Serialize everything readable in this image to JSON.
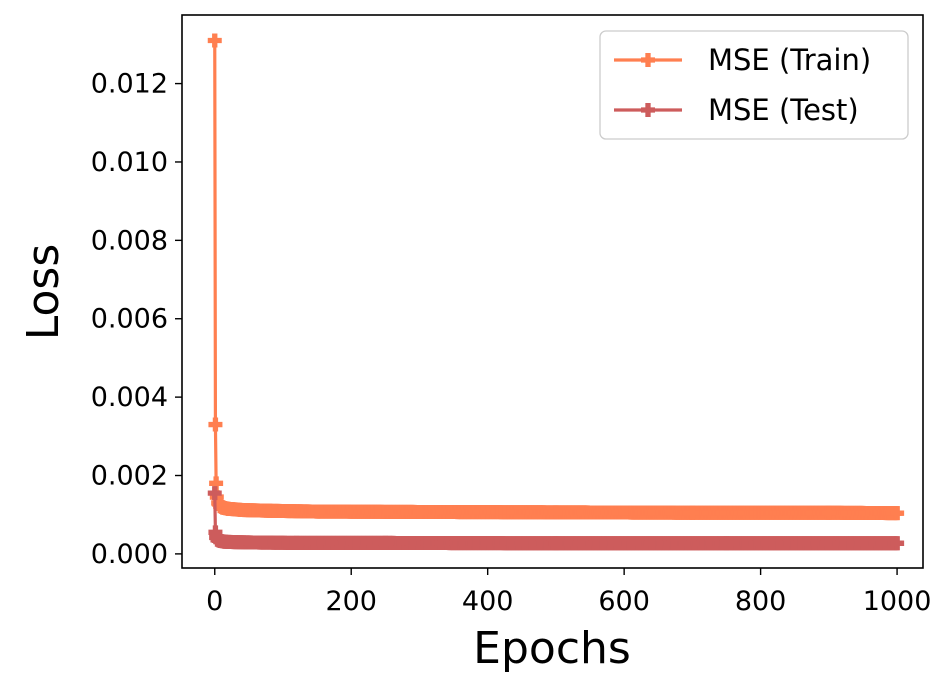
{
  "chart_data": {
    "type": "line",
    "title": "",
    "xlabel": "Epochs",
    "ylabel": "Loss",
    "xlim": [
      -48,
      1038
    ],
    "ylim": [
      -0.00036,
      0.01375
    ],
    "xticks": [
      0,
      200,
      400,
      600,
      800,
      1000
    ],
    "yticks": [
      0.0,
      0.002,
      0.004,
      0.006,
      0.008,
      0.01,
      0.012
    ],
    "xtick_labels": [
      "0",
      "200",
      "400",
      "600",
      "800",
      "1000"
    ],
    "ytick_labels": [
      "0.000",
      "0.002",
      "0.004",
      "0.006",
      "0.008",
      "0.010",
      "0.012"
    ],
    "grid": false,
    "legend_position": "top-right",
    "marker": "plus-filled",
    "series": [
      {
        "name": "MSE (Train)",
        "color": "#FF7F50",
        "points": [
          [
            0,
            0.0131
          ],
          [
            1,
            0.0033
          ],
          [
            2,
            0.0018
          ],
          [
            3,
            0.00145
          ],
          [
            5,
            0.0013
          ],
          [
            8,
            0.00122
          ],
          [
            12,
            0.00118
          ],
          [
            20,
            0.00115
          ],
          [
            40,
            0.00112
          ],
          [
            80,
            0.0011
          ],
          [
            150,
            0.00108
          ],
          [
            300,
            0.00107
          ],
          [
            500,
            0.00106
          ],
          [
            700,
            0.00105
          ],
          [
            900,
            0.00105
          ],
          [
            1000,
            0.00104
          ]
        ]
      },
      {
        "name": "MSE (Test)",
        "color": "#CD5C5C",
        "points": [
          [
            0,
            0.00155
          ],
          [
            1,
            0.00055
          ],
          [
            2,
            0.00042
          ],
          [
            4,
            0.00036
          ],
          [
            8,
            0.00033
          ],
          [
            15,
            0.00031
          ],
          [
            30,
            0.0003
          ],
          [
            60,
            0.00029
          ],
          [
            120,
            0.00028
          ],
          [
            250,
            0.00028
          ],
          [
            500,
            0.00027
          ],
          [
            750,
            0.00027
          ],
          [
            1000,
            0.00027
          ]
        ]
      }
    ]
  }
}
